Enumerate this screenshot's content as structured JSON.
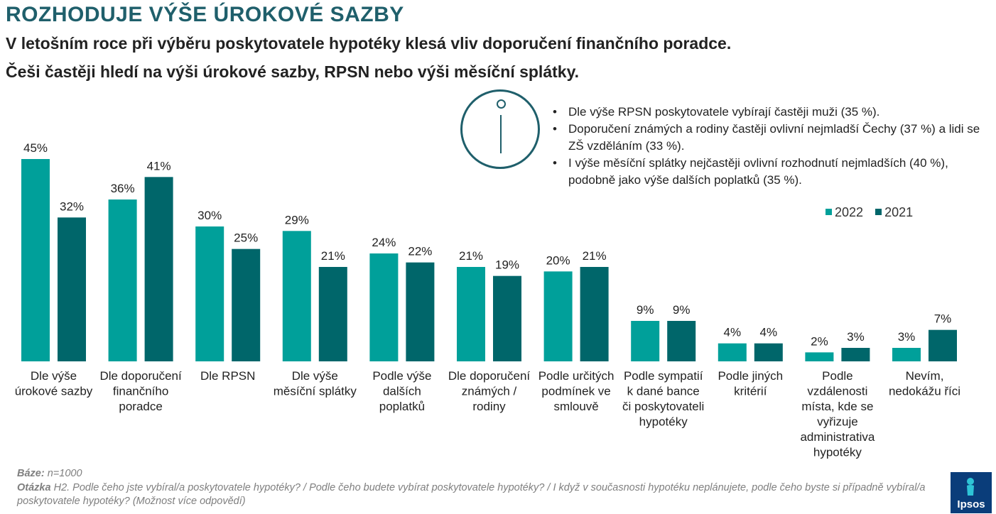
{
  "title": "ROZHODUJE VÝŠE ÚROKOVÉ SAZBY",
  "subtitle_line1": "V letošním roce při výběru poskytovatele hypotéky klesá vliv doporučení finančního poradce.",
  "subtitle_line2": "Češi častěji hledí na výši úrokové sazby, RPSN nebo výši měsíční splátky.",
  "notes": [
    "Dle výše RPSN poskytovatele vybírají častěji muži (35 %).",
    "Doporučení známých a rodiny častěji ovlivní nejmladší Čechy (37 %) a lidi se ZŠ vzděláním (33 %).",
    "I výše měsíční splátky nejčastěji ovlivní rozhodnutí nejmladších (40 %), podobně jako výše dalších poplatků (35 %)."
  ],
  "info_icon": "info-icon",
  "colors": {
    "s2022": "#00a09a",
    "s2021": "#00666a",
    "title": "#1f5f6b"
  },
  "chart_data": {
    "type": "bar",
    "categories": [
      [
        "Dle výše",
        "úrokové sazby"
      ],
      [
        "Dle doporučení",
        "finančního",
        "poradce"
      ],
      [
        "Dle RPSN"
      ],
      [
        "Dle výše",
        "měsíční splátky"
      ],
      [
        "Podle výše",
        "dalších",
        "poplatků"
      ],
      [
        "Dle doporučení",
        "známých /",
        "rodiny"
      ],
      [
        "Podle určitých",
        "podmínek ve",
        "smlouvě"
      ],
      [
        "Podle sympatií",
        "k dané bance",
        "či poskytovateli",
        "hypotéky"
      ],
      [
        "Podle jiných",
        "kritérií"
      ],
      [
        "Podle",
        "vzdálenosti",
        "místa, kde se",
        "vyřizuje",
        "administrativa",
        "hypotéky"
      ],
      [
        "Nevím,",
        "nedokážu říci"
      ]
    ],
    "series": [
      {
        "name": "2022",
        "values": [
          45,
          36,
          30,
          29,
          24,
          21,
          20,
          9,
          4,
          2,
          3
        ],
        "color": "#00a09a"
      },
      {
        "name": "2021",
        "values": [
          32,
          41,
          25,
          21,
          22,
          19,
          21,
          9,
          4,
          3,
          7
        ],
        "color": "#00666a"
      }
    ],
    "value_suffix": "%",
    "ylim": [
      0,
      45
    ],
    "grid": false,
    "legend": "top-right"
  },
  "footer": {
    "base_label": "Báze:",
    "base_value": "n=1000",
    "question_label": "Otázka",
    "question_text": "H2. Podle čeho jste vybíral/a poskytovatele hypotéky? / Podle čeho budete vybírat poskytovatele hypotéky? / I když v současnosti hypotéku neplánujete, podle čeho byste si případně vybíral/a poskytovatele hypotéky? (Možnost více odpovědí)"
  },
  "logo_text": "Ipsos"
}
